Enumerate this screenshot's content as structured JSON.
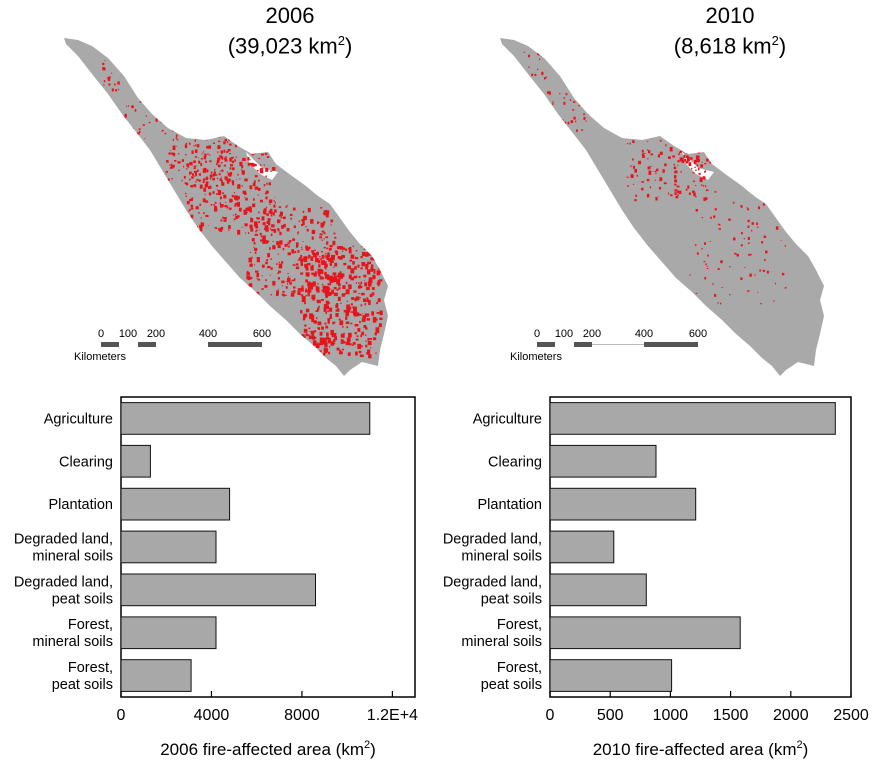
{
  "maps": [
    {
      "year": "2006",
      "area_prefix": "(39,023 km",
      "area_sup": "2",
      "area_suffix": ")",
      "scale_labels": [
        "0",
        "100",
        "200",
        "400",
        "600"
      ],
      "scale_unit": "Kilometers"
    },
    {
      "year": "2010",
      "area_prefix": "(8,618 km",
      "area_sup": "2",
      "area_suffix": ")",
      "scale_labels": [
        "0",
        "100",
        "200",
        "400",
        "600"
      ],
      "scale_unit": "Kilometers"
    }
  ],
  "colors": {
    "land": "#a9a9a9",
    "fire": "#e8141c",
    "bar_fill": "#a8a8a8",
    "bar_stroke": "#111111",
    "scale_bar": "#555555"
  },
  "chart_data": [
    {
      "type": "bar",
      "orientation": "horizontal",
      "categories": [
        [
          "Agriculture"
        ],
        [
          "Clearing"
        ],
        [
          "Plantation"
        ],
        [
          "Degraded land,",
          "mineral soils"
        ],
        [
          "Degraded land,",
          "peat soils"
        ],
        [
          "Forest,",
          "mineral soils"
        ],
        [
          "Forest,",
          "peat soils"
        ]
      ],
      "values": [
        11000,
        1300,
        4800,
        4200,
        8600,
        4200,
        3100
      ],
      "xlim": [
        0,
        13000
      ],
      "xticks": [
        0,
        4000,
        8000,
        12000
      ],
      "xtick_labels": [
        "0",
        "4000",
        "8000",
        "1.2E+4"
      ],
      "xlabel_prefix": "2006 fire-affected area (km",
      "xlabel_sup": "2",
      "xlabel_suffix": ")",
      "grid": false
    },
    {
      "type": "bar",
      "orientation": "horizontal",
      "categories": [
        [
          "Agriculture"
        ],
        [
          "Clearing"
        ],
        [
          "Plantation"
        ],
        [
          "Degraded land,",
          "mineral soils"
        ],
        [
          "Degraded land,",
          "peat soils"
        ],
        [
          "Forest,",
          "mineral soils"
        ],
        [
          "Forest,",
          "peat soils"
        ]
      ],
      "values": [
        2370,
        880,
        1210,
        530,
        800,
        1580,
        1010
      ],
      "xlim": [
        0,
        2500
      ],
      "xticks": [
        0,
        500,
        1000,
        1500,
        2000,
        2500
      ],
      "xtick_labels": [
        "0",
        "500",
        "1000",
        "1500",
        "2000",
        "2500"
      ],
      "xlabel_prefix": "2010 fire-affected area (km",
      "xlabel_sup": "2",
      "xlabel_suffix": ")",
      "grid": false
    }
  ]
}
